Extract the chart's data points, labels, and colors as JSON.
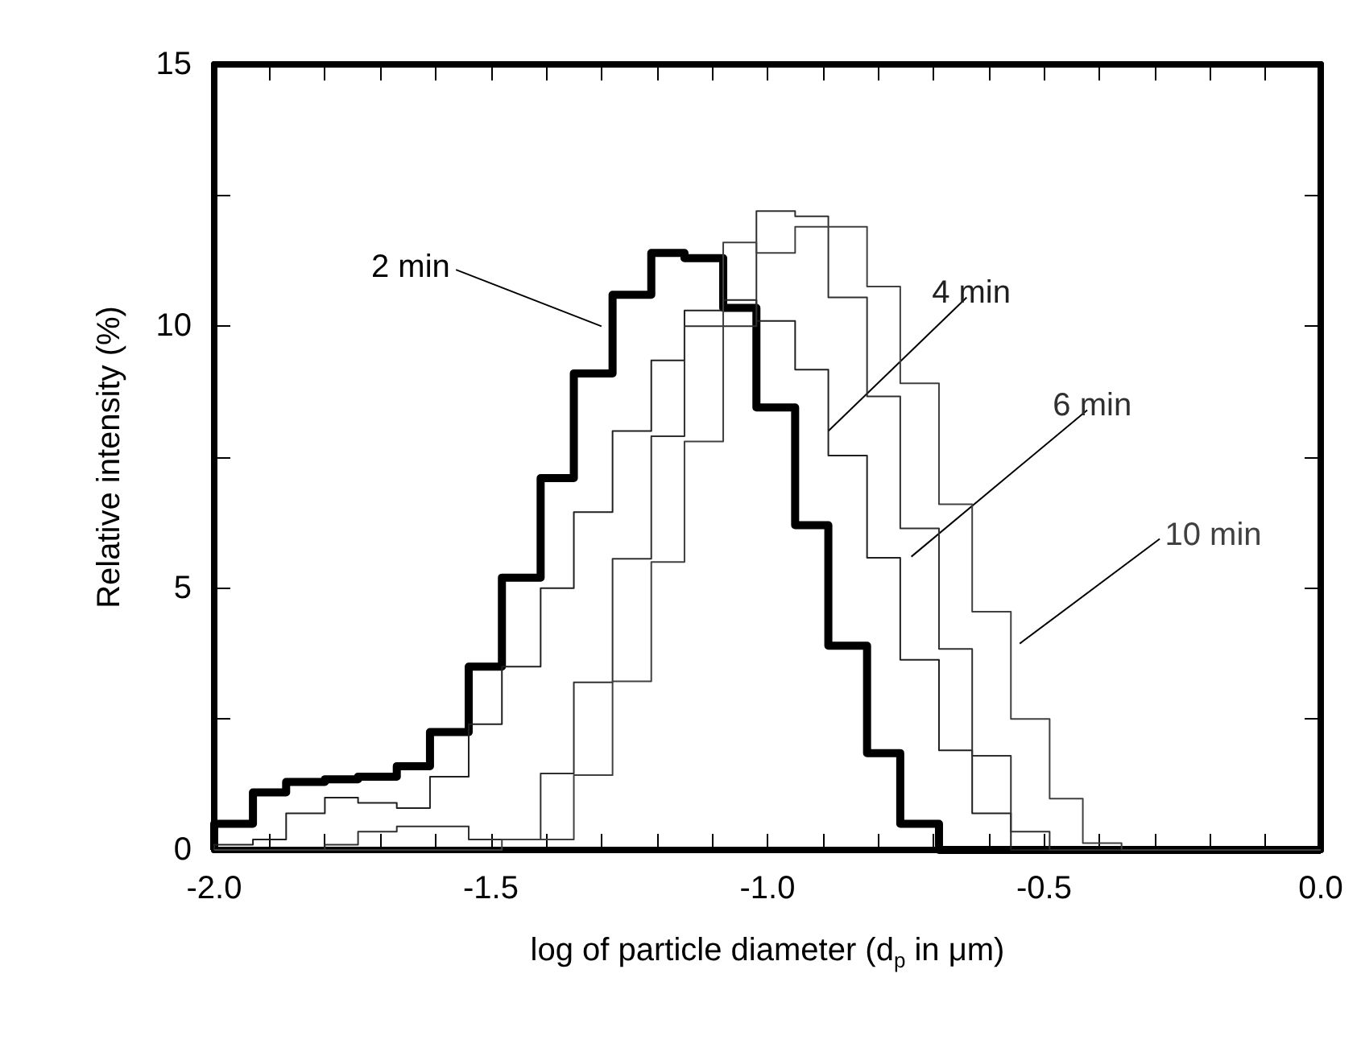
{
  "chart_data": {
    "type": "histogram",
    "xlabel": "log of particle diameter (d$_{p}$ in μm)",
    "ylabel": "Relative intensity (%)",
    "bins": [
      -2.0,
      -1.93,
      -1.87,
      -1.8,
      -1.74,
      -1.67,
      -1.61,
      -1.54,
      -1.48,
      -1.41,
      -1.35,
      -1.28,
      -1.21,
      -1.15,
      -1.08,
      -1.02,
      -0.95,
      -0.89,
      -0.82,
      -0.76,
      -0.69,
      -0.63,
      -0.56,
      -0.49,
      -0.43,
      -0.36,
      -0.3,
      -0.23,
      -0.17,
      -0.1,
      -0.04,
      0.0
    ],
    "series": [
      {
        "name": "2 min",
        "color": "#000000",
        "values": [
          0.5,
          1.1,
          1.3,
          1.35,
          1.4,
          1.6,
          2.25,
          3.5,
          5.2,
          7.1,
          9.1,
          10.6,
          11.4,
          11.3,
          10.35,
          8.45,
          6.2,
          3.9,
          1.85,
          0.5,
          0,
          0,
          0,
          0,
          0,
          0,
          0,
          0,
          0,
          0,
          0
        ]
      },
      {
        "name": "4 min",
        "color": "#202020",
        "values": [
          0.1,
          0.2,
          0.7,
          1.0,
          0.9,
          0.8,
          1.4,
          2.4,
          3.5,
          5.0,
          6.45,
          8.0,
          9.35,
          10.3,
          10.5,
          10.1,
          9.17,
          7.53,
          5.58,
          3.63,
          1.9,
          0.7,
          0,
          0,
          0,
          0,
          0,
          0,
          0,
          0,
          0
        ]
      },
      {
        "name": "6 min",
        "color": "#303030",
        "values": [
          0,
          0,
          0,
          0.1,
          0.35,
          0.45,
          0.45,
          0.2,
          0.2,
          1.46,
          3.2,
          5.56,
          7.9,
          10.0,
          10.0,
          12.2,
          12.1,
          10.55,
          8.66,
          6.14,
          3.84,
          1.8,
          0.35,
          0,
          0,
          0,
          0,
          0,
          0,
          0,
          0
        ]
      },
      {
        "name": "10 min",
        "color": "#404040",
        "values": [
          0,
          0,
          0,
          0,
          0,
          0,
          0,
          0,
          0.2,
          0.2,
          1.43,
          3.22,
          5.5,
          7.8,
          11.6,
          11.4,
          11.9,
          11.9,
          10.76,
          8.91,
          6.6,
          4.55,
          2.5,
          0.98,
          0.13,
          0,
          0,
          0,
          0,
          0,
          0
        ]
      }
    ],
    "xlim": [
      -2.0,
      0.0
    ],
    "xticks": [
      {
        "value": -2.0,
        "label": "-2.0"
      },
      {
        "value": -1.9,
        "label": null
      },
      {
        "value": -1.8,
        "label": null
      },
      {
        "value": -1.7,
        "label": null
      },
      {
        "value": -1.6,
        "label": null
      },
      {
        "value": -1.5,
        "label": "-1.5"
      },
      {
        "value": -1.4,
        "label": null
      },
      {
        "value": -1.3,
        "label": null
      },
      {
        "value": -1.2,
        "label": null
      },
      {
        "value": -1.1,
        "label": null
      },
      {
        "value": -1.0,
        "label": "-1.0"
      },
      {
        "value": -0.9,
        "label": null
      },
      {
        "value": -0.8,
        "label": null
      },
      {
        "value": -0.7,
        "label": null
      },
      {
        "value": -0.6,
        "label": null
      },
      {
        "value": -0.5,
        "label": "-0.5"
      },
      {
        "value": -0.4,
        "label": null
      },
      {
        "value": -0.3,
        "label": null
      },
      {
        "value": -0.2,
        "label": null
      },
      {
        "value": -0.1,
        "label": null
      },
      {
        "value": 0.0,
        "label": "0.0"
      }
    ],
    "ylim": [
      0,
      15
    ],
    "yticks": [
      0,
      {
        "value": 2.5,
        "label": null
      },
      5,
      {
        "value": 7.5,
        "label": null
      },
      10,
      {
        "value": 12.5,
        "label": null
      },
      15
    ],
    "grid": false,
    "legend": false
  }
}
